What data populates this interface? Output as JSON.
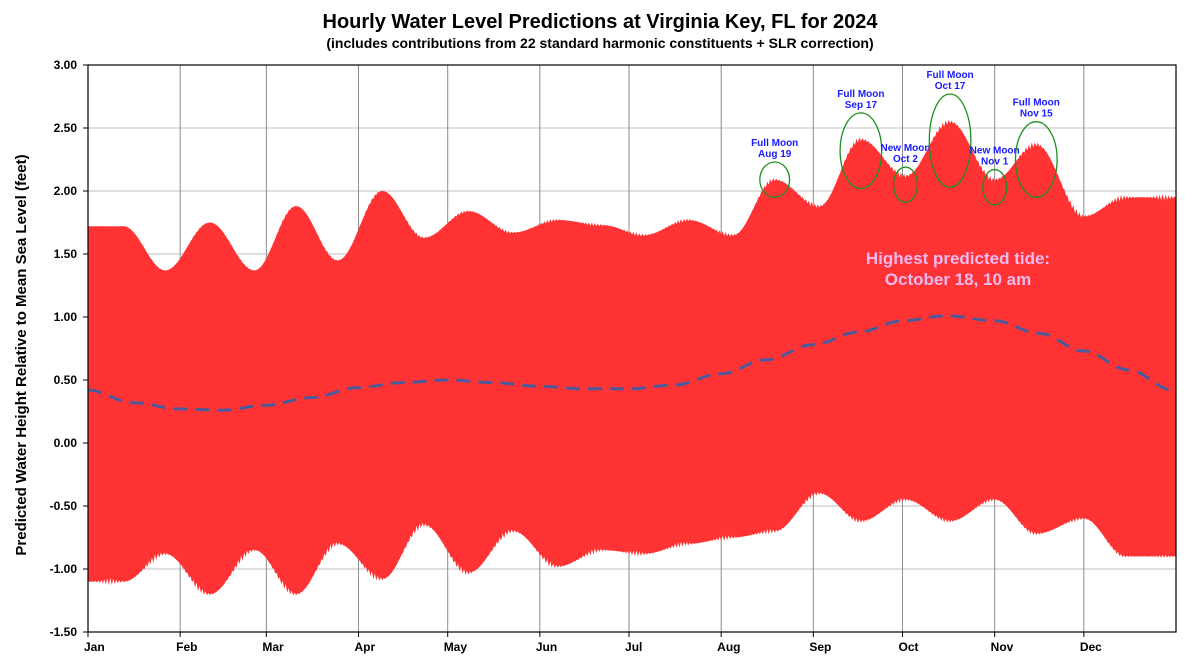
{
  "chart_data": {
    "type": "area",
    "title": "Hourly Water Level Predictions at Virginia Key, FL for 2024",
    "subtitle": "(includes contributions from 22 standard harmonic constituents + SLR correction)",
    "ylabel": "Predicted  Water Height Relative to Mean Sea Level (feet)",
    "xlabel": "",
    "ylim": [
      -1.5,
      3.0
    ],
    "xlim_days": [
      0,
      366
    ],
    "grid": "on",
    "y_ticks": [
      "3.00",
      "2.50",
      "2.00",
      "1.50",
      "1.00",
      "0.50",
      "0.00",
      "-0.50",
      "-1.00",
      "-1.50"
    ],
    "y_tick_values": [
      3.0,
      2.5,
      2.0,
      1.5,
      1.0,
      0.5,
      0.0,
      -0.5,
      -1.0,
      -1.5
    ],
    "x_tick_labels": [
      "Jan",
      "Feb",
      "Mar",
      "Apr",
      "May",
      "Jun",
      "Jul",
      "Aug",
      "Sep",
      "Oct",
      "Nov",
      "Dec"
    ],
    "x_tick_dates": [
      "2024-01-01",
      "2024-02-01",
      "2024-03-01",
      "2024-04-01",
      "2024-05-01",
      "2024-06-01",
      "2024-07-01",
      "2024-08-01",
      "2024-09-01",
      "2024-10-01",
      "2024-11-01",
      "2024-12-01"
    ],
    "series": [
      {
        "name": "",
        "role": "hourly predicted water level envelope",
        "color": "#ff3333",
        "high_peaks": [
          {
            "date": "2024-01-13",
            "value": 1.72
          },
          {
            "date": "2024-01-27",
            "value": 1.37
          },
          {
            "date": "2024-02-11",
            "value": 1.75
          },
          {
            "date": "2024-02-26",
            "value": 1.37
          },
          {
            "date": "2024-03-11",
            "value": 1.88
          },
          {
            "date": "2024-03-25",
            "value": 1.45
          },
          {
            "date": "2024-04-09",
            "value": 2.0
          },
          {
            "date": "2024-04-23",
            "value": 1.63
          },
          {
            "date": "2024-05-08",
            "value": 1.84
          },
          {
            "date": "2024-05-23",
            "value": 1.67
          },
          {
            "date": "2024-06-07",
            "value": 1.77
          },
          {
            "date": "2024-06-22",
            "value": 1.73
          },
          {
            "date": "2024-07-06",
            "value": 1.65
          },
          {
            "date": "2024-07-21",
            "value": 1.77
          },
          {
            "date": "2024-08-05",
            "value": 1.65
          },
          {
            "date": "2024-08-19",
            "value": 2.09
          },
          {
            "date": "2024-09-03",
            "value": 1.88
          },
          {
            "date": "2024-09-17",
            "value": 2.41
          },
          {
            "date": "2024-10-02",
            "value": 2.12
          },
          {
            "date": "2024-10-17",
            "value": 2.55
          },
          {
            "date": "2024-11-01",
            "value": 2.09
          },
          {
            "date": "2024-11-15",
            "value": 2.37
          },
          {
            "date": "2024-12-01",
            "value": 1.8
          },
          {
            "date": "2024-12-15",
            "value": 1.95
          }
        ],
        "low_troughs": [
          {
            "date": "2024-01-13",
            "value": -1.1
          },
          {
            "date": "2024-01-27",
            "value": -0.88
          },
          {
            "date": "2024-02-11",
            "value": -1.2
          },
          {
            "date": "2024-02-26",
            "value": -0.85
          },
          {
            "date": "2024-03-11",
            "value": -1.2
          },
          {
            "date": "2024-03-25",
            "value": -0.8
          },
          {
            "date": "2024-04-09",
            "value": -1.08
          },
          {
            "date": "2024-04-23",
            "value": -0.65
          },
          {
            "date": "2024-05-08",
            "value": -1.03
          },
          {
            "date": "2024-05-23",
            "value": -0.7
          },
          {
            "date": "2024-06-07",
            "value": -0.98
          },
          {
            "date": "2024-06-22",
            "value": -0.85
          },
          {
            "date": "2024-07-06",
            "value": -0.88
          },
          {
            "date": "2024-07-21",
            "value": -0.8
          },
          {
            "date": "2024-08-05",
            "value": -0.75
          },
          {
            "date": "2024-08-19",
            "value": -0.7
          },
          {
            "date": "2024-09-03",
            "value": -0.4
          },
          {
            "date": "2024-09-17",
            "value": -0.62
          },
          {
            "date": "2024-10-02",
            "value": -0.45
          },
          {
            "date": "2024-10-17",
            "value": -0.62
          },
          {
            "date": "2024-11-01",
            "value": -0.45
          },
          {
            "date": "2024-11-15",
            "value": -0.72
          },
          {
            "date": "2024-12-01",
            "value": -0.6
          },
          {
            "date": "2024-12-15",
            "value": -0.9
          }
        ]
      },
      {
        "name": "",
        "role": "smoothed mean water level",
        "color": "#4a5a9a",
        "style": "dashed",
        "points": [
          {
            "date": "2024-01-01",
            "value": 0.42
          },
          {
            "date": "2024-01-16",
            "value": 0.32
          },
          {
            "date": "2024-02-01",
            "value": 0.27
          },
          {
            "date": "2024-02-15",
            "value": 0.26
          },
          {
            "date": "2024-03-01",
            "value": 0.3
          },
          {
            "date": "2024-03-16",
            "value": 0.36
          },
          {
            "date": "2024-04-01",
            "value": 0.44
          },
          {
            "date": "2024-04-16",
            "value": 0.48
          },
          {
            "date": "2024-05-01",
            "value": 0.5
          },
          {
            "date": "2024-05-16",
            "value": 0.48
          },
          {
            "date": "2024-06-01",
            "value": 0.45
          },
          {
            "date": "2024-06-16",
            "value": 0.43
          },
          {
            "date": "2024-07-01",
            "value": 0.43
          },
          {
            "date": "2024-07-16",
            "value": 0.46
          },
          {
            "date": "2024-08-01",
            "value": 0.55
          },
          {
            "date": "2024-08-16",
            "value": 0.66
          },
          {
            "date": "2024-09-01",
            "value": 0.78
          },
          {
            "date": "2024-09-16",
            "value": 0.88
          },
          {
            "date": "2024-10-01",
            "value": 0.97
          },
          {
            "date": "2024-10-16",
            "value": 1.01
          },
          {
            "date": "2024-11-01",
            "value": 0.97
          },
          {
            "date": "2024-11-16",
            "value": 0.87
          },
          {
            "date": "2024-12-01",
            "value": 0.73
          },
          {
            "date": "2024-12-16",
            "value": 0.58
          },
          {
            "date": "2024-12-31",
            "value": 0.42
          }
        ]
      }
    ],
    "annotations": [
      {
        "line1": "Full Moon",
        "line2": "Aug 19",
        "date": "2024-08-19",
        "value": 2.09,
        "circle_rx_days": 5,
        "circle_ry": 0.14
      },
      {
        "line1": "Full Moon",
        "line2": "Sep 17",
        "date": "2024-09-17",
        "value": 2.32,
        "circle_rx_days": 7,
        "circle_ry": 0.3
      },
      {
        "line1": "New Moon",
        "line2": "Oct 2",
        "date": "2024-10-02",
        "value": 2.05,
        "circle_rx_days": 4,
        "circle_ry": 0.14
      },
      {
        "line1": "Full Moon",
        "line2": "Oct 17",
        "date": "2024-10-17",
        "value": 2.4,
        "circle_rx_days": 7,
        "circle_ry": 0.37
      },
      {
        "line1": "New Moon",
        "line2": "Nov 1",
        "date": "2024-11-01",
        "value": 2.03,
        "circle_rx_days": 4,
        "circle_ry": 0.14
      },
      {
        "line1": "Full Moon",
        "line2": "Nov 15",
        "date": "2024-11-15",
        "value": 2.25,
        "circle_rx_days": 7,
        "circle_ry": 0.3
      }
    ],
    "highlight": {
      "line1": "Highest predicted tide:",
      "line2": "October 18, 10 am",
      "color": "#f0b8f0"
    },
    "colors": {
      "envelope": "#ff3333",
      "mean_line": "#4a5a9a",
      "annotation_text": "#1a1aff",
      "annotation_circle": "#1f8f1f",
      "grid": "#bfbfbf",
      "axis": "#000000"
    }
  }
}
